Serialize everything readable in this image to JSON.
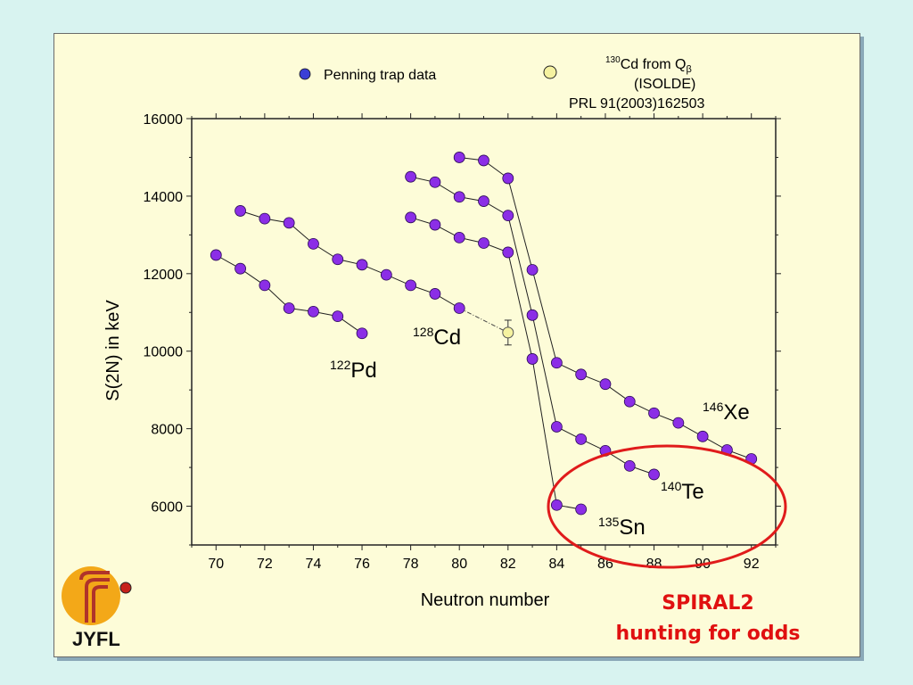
{
  "colors": {
    "background": "#d8f3f0",
    "slide": "#fdfcd8",
    "penning_point": "#8b2ee6",
    "isolde_point": "#f5f2a0",
    "ellipse": "#e01b1b",
    "spiral_text": "#e01010"
  },
  "legend": {
    "penning_label": "Penning trap data",
    "isolde_label_sup": "130",
    "isolde_label_main": "Cd from Q",
    "isolde_label_sub": "β",
    "isolde_line2": "(ISOLDE)",
    "isolde_line3": "PRL 91(2003)162503"
  },
  "annotations": {
    "pd": {
      "sup": "122",
      "main": "Pd"
    },
    "cd": {
      "sup": "128",
      "main": "Cd"
    },
    "xe": {
      "sup": "146",
      "main": "Xe"
    },
    "te": {
      "sup": "140",
      "main": "Te"
    },
    "sn": {
      "sup": "135",
      "main": "Sn"
    },
    "spiral_line1": "SPIRAL2",
    "spiral_line2": "hunting for odds"
  },
  "logo": {
    "text": "JYFL",
    "icon": "jyfl-logo-icon"
  },
  "chart_data": {
    "type": "scatter",
    "xlabel": "Neutron number",
    "ylabel": "S(2N) in keV",
    "xlim": [
      69,
      93
    ],
    "ylim": [
      5000,
      16000
    ],
    "xticks": [
      70,
      72,
      74,
      76,
      78,
      80,
      82,
      84,
      86,
      88,
      90,
      92
    ],
    "yticks": [
      6000,
      8000,
      10000,
      12000,
      14000,
      16000
    ],
    "grid": false,
    "series": [
      {
        "name": "Pd",
        "x": [
          70,
          71,
          72,
          73,
          74,
          75,
          76
        ],
        "y": [
          12480,
          12130,
          11700,
          11110,
          11020,
          10900,
          10460
        ]
      },
      {
        "name": "Cd",
        "x": [
          71,
          72,
          73,
          74,
          75,
          76,
          77,
          78,
          79,
          80
        ],
        "y": [
          13620,
          13420,
          13310,
          12770,
          12370,
          12230,
          11970,
          11700,
          11480,
          11110
        ]
      },
      {
        "name": "Sn",
        "x": [
          78,
          79,
          80,
          81,
          82,
          83,
          84,
          85
        ],
        "y": [
          13450,
          13260,
          12930,
          12790,
          12550,
          9800,
          6030,
          5920
        ]
      },
      {
        "name": "Te",
        "x": [
          78,
          79,
          80,
          81,
          82,
          83,
          84,
          85,
          86,
          87,
          88
        ],
        "y": [
          14500,
          14360,
          13980,
          13870,
          13500,
          10930,
          8050,
          7730,
          7430,
          7040,
          6820
        ]
      },
      {
        "name": "Xe",
        "x": [
          80,
          81,
          82,
          83,
          84,
          85,
          86,
          87,
          88,
          89,
          90,
          91,
          92
        ],
        "y": [
          15000,
          14920,
          14460,
          12100,
          9700,
          9400,
          9150,
          8700,
          8400,
          8150,
          7800,
          7450,
          7220
        ]
      }
    ],
    "isolde_point": {
      "x": 82,
      "y": 10480,
      "err": 320
    },
    "extrapolation": {
      "from": [
        80,
        11110
      ],
      "to": [
        82,
        10480
      ]
    },
    "legend_position": "top"
  }
}
